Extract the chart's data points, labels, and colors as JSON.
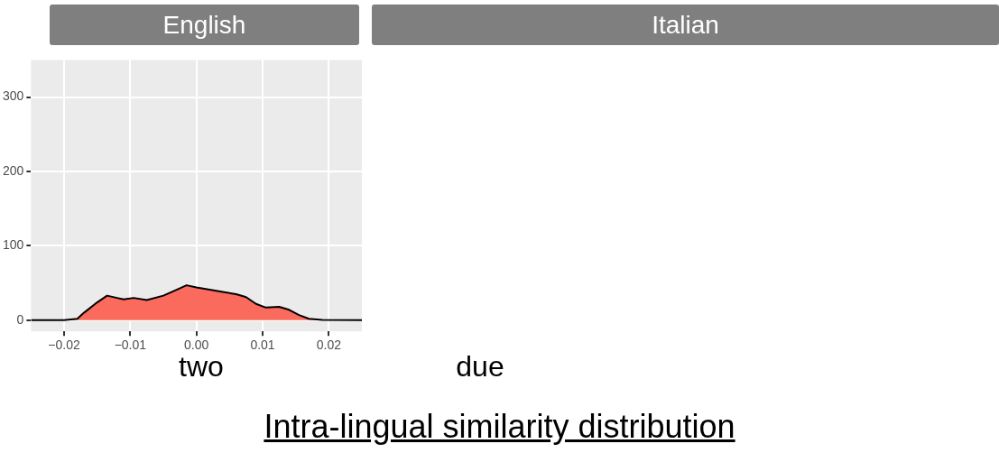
{
  "chart_data": [
    {
      "type": "area",
      "title": "English",
      "x": [
        -0.025,
        -0.02,
        -0.018,
        -0.017,
        -0.015,
        -0.0135,
        -0.012,
        -0.011,
        -0.0095,
        -0.0075,
        -0.005,
        -0.003,
        -0.0015,
        0,
        0.002,
        0.004,
        0.006,
        0.0075,
        0.009,
        0.0105,
        0.0125,
        0.014,
        0.0155,
        0.017,
        0.019,
        0.025
      ],
      "series": [
        {
          "color": "#fa6b5d",
          "values": [
            0,
            0,
            2,
            10,
            24,
            33,
            30,
            28,
            30,
            27,
            33,
            41,
            47,
            44,
            41,
            38,
            35,
            31,
            22,
            17,
            18,
            14,
            7,
            2,
            0.5,
            0
          ]
        }
      ],
      "xlim": [
        -0.025,
        0.025
      ],
      "xticks": [
        {
          "value": -0.02,
          "label": "−0.02"
        },
        {
          "value": -0.01,
          "label": "−0.01"
        },
        {
          "value": 0,
          "label": "0.00"
        },
        {
          "value": 0.01,
          "label": "0.01"
        },
        {
          "value": 0.02,
          "label": "0.02"
        }
      ],
      "ylim": [
        -15,
        350
      ],
      "yticks": [
        0,
        100,
        200,
        300
      ],
      "grid": true,
      "legend": false,
      "annotations": [
        "two",
        "Intra-lingual similarity distribution"
      ]
    },
    {
      "type": "other",
      "title": "Italian",
      "annotations": [
        "due"
      ]
    }
  ]
}
